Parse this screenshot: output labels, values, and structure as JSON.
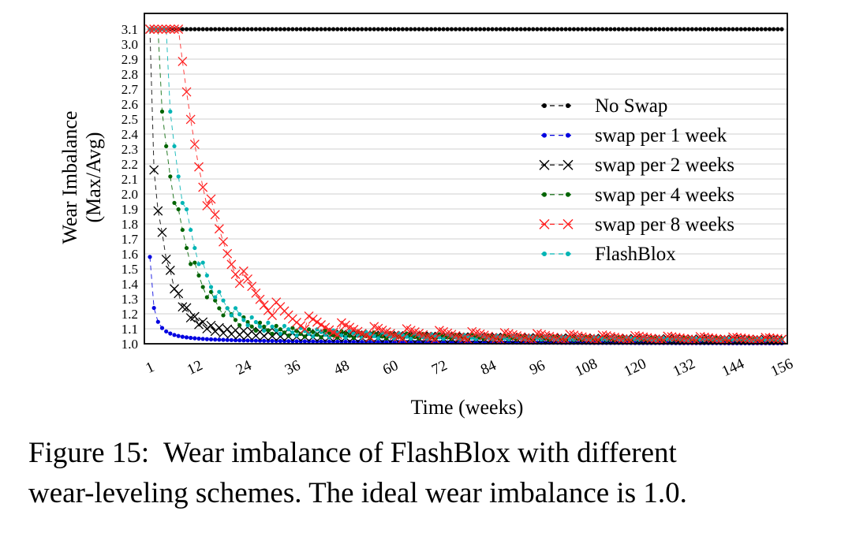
{
  "chart_data": {
    "type": "line",
    "xlabel": "Time (weeks)",
    "ylabel_lines": [
      "Wear Imbalance",
      "(Max/Avg)"
    ],
    "xlim": [
      1,
      156
    ],
    "ylim": [
      1.0,
      3.1
    ],
    "x_ticks": [
      1,
      12,
      24,
      36,
      48,
      60,
      72,
      84,
      96,
      108,
      120,
      132,
      144,
      156
    ],
    "y_ticks": [
      "1.0",
      "1.1",
      "1.2",
      "1.3",
      "1.4",
      "1.5",
      "1.6",
      "1.7",
      "1.8",
      "1.9",
      "2.0",
      "2.1",
      "2.2",
      "2.3",
      "2.4",
      "2.5",
      "2.6",
      "2.7",
      "2.8",
      "2.9",
      "3.0",
      "3.1"
    ],
    "grid": "horizontal",
    "legend_position": "center-right",
    "series": [
      {
        "name": "No Swap",
        "color": "#000000",
        "marker": "dot",
        "period": 0,
        "swap_start": 0
      },
      {
        "name": "swap per 1 week",
        "color": "#0000e0",
        "marker": "dot",
        "period": 1,
        "swap_start": 1
      },
      {
        "name": "swap per 2 weeks",
        "color": "#000000",
        "marker": "x",
        "period": 2,
        "swap_start": 2
      },
      {
        "name": "swap per 4 weeks",
        "color": "#006400",
        "marker": "dot",
        "period": 4,
        "swap_start": 4
      },
      {
        "name": "swap per 8 weeks",
        "color": "#ff2020",
        "marker": "x",
        "period": 8,
        "swap_start": 8
      },
      {
        "name": "FlashBlox",
        "color": "#00b4b4",
        "marker": "dot",
        "period": 4,
        "swap_start": 6
      }
    ]
  },
  "caption": {
    "title": "Figure 15:  Wear imbalance of FlashBlox with different",
    "text": "wear-leveling schemes. The ideal wear imbalance is 1.0."
  }
}
